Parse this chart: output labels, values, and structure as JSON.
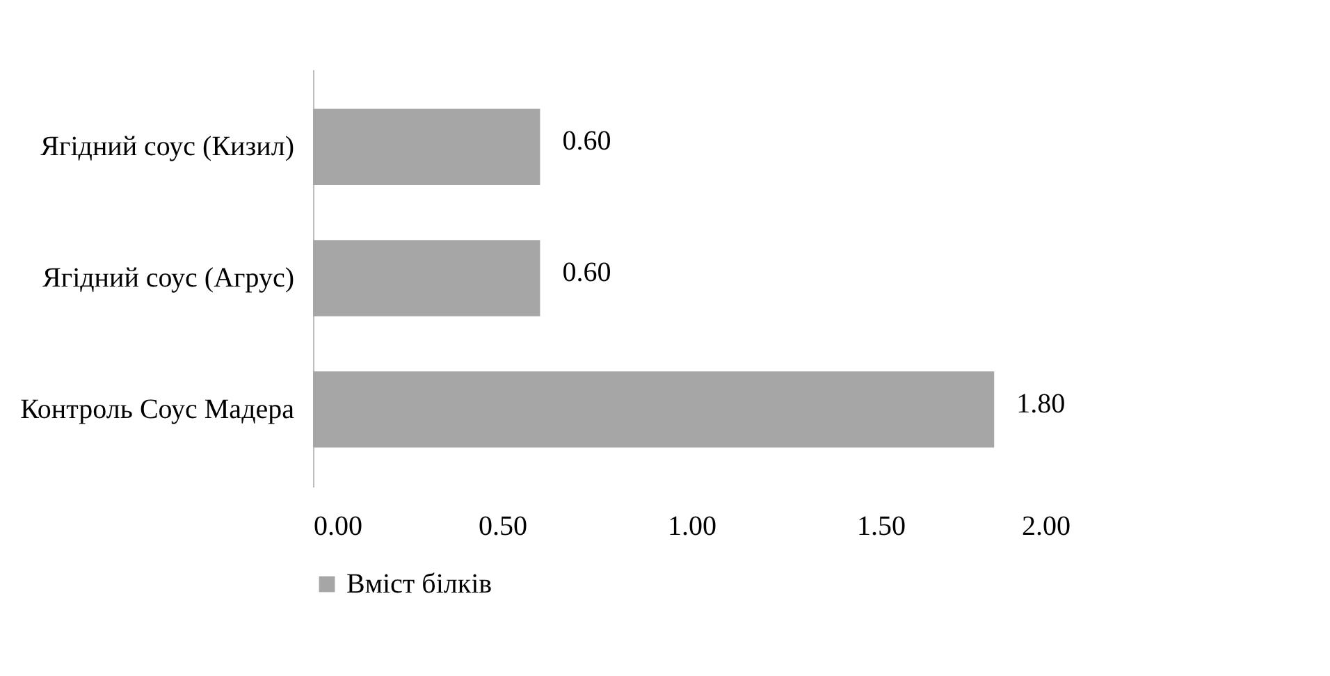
{
  "chart_data": {
    "type": "bar",
    "orientation": "horizontal",
    "categories": [
      "Ягідний соус (Кизил)",
      "Ягідний соус (Агрус)",
      "Контроль Соус Мадера"
    ],
    "series": [
      {
        "name": "Вміст білків",
        "color": "#a6a6a6",
        "values": [
          0.6,
          0.6,
          1.8
        ],
        "value_labels": [
          "0.60",
          "0.60",
          "1.80"
        ]
      }
    ],
    "xlim": [
      0,
      2
    ],
    "xticks": [
      {
        "value": 0,
        "label": "0.00"
      },
      {
        "value": 0.5,
        "label": "0.50"
      },
      {
        "value": 1,
        "label": "1.00"
      },
      {
        "value": 1.5,
        "label": "1.50"
      },
      {
        "value": 2,
        "label": "2.00"
      }
    ],
    "grid": false,
    "legend": "bottom"
  }
}
